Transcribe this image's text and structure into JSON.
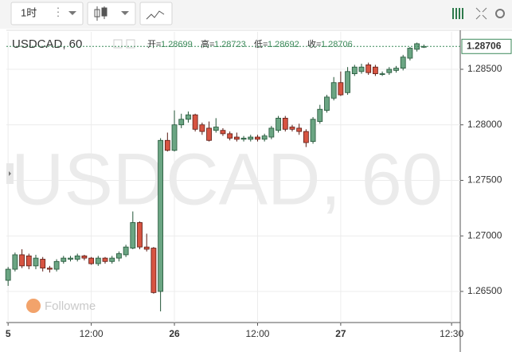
{
  "toolbar": {
    "interval": "1时"
  },
  "chart_data": {
    "type": "candlestick",
    "title": "USDCAD, 60",
    "ohlc_labels": [
      "开=",
      "高=",
      "低=",
      "收="
    ],
    "watermark_logo": "Followme",
    "up_color": "#6ba583",
    "down_color": "#d75442",
    "x": [
      0,
      1,
      2,
      3,
      4,
      5,
      6,
      7,
      8,
      9,
      10,
      11,
      12,
      13,
      14,
      15,
      16,
      17,
      18,
      19,
      20,
      21,
      22,
      23,
      24,
      25,
      26,
      27,
      28,
      29,
      30,
      31,
      32,
      33,
      34,
      35,
      36,
      37,
      38,
      39,
      40,
      41,
      42,
      43,
      44,
      45,
      46,
      47,
      48,
      49,
      50,
      51,
      52,
      53,
      54,
      55,
      56,
      57,
      58,
      59,
      60
    ],
    "open": [
      1.266,
      1.267,
      1.2683,
      1.2682,
      1.2673,
      1.2679,
      1.2671,
      1.267,
      1.2677,
      1.2679,
      1.2679,
      1.2682,
      1.268,
      1.2675,
      1.268,
      1.2677,
      1.268,
      1.2683,
      1.2689,
      1.2712,
      1.269,
      1.2689,
      1.265,
      1.2786,
      1.2777,
      1.28,
      1.2805,
      1.2809,
      1.28,
      1.2797,
      1.2795,
      1.2795,
      1.2792,
      1.2789,
      1.2787,
      1.2787,
      1.2789,
      1.2787,
      1.2789,
      1.2795,
      1.2806,
      1.2798,
      1.2797,
      1.2794,
      1.2785,
      1.2803,
      1.2813,
      1.2824,
      1.2838,
      1.2829,
      1.2846,
      1.2848,
      1.2854,
      1.2852,
      1.2846,
      1.2847,
      1.2849,
      1.2851,
      1.286,
      1.2868,
      1.28699
    ],
    "high": [
      1.2672,
      1.2685,
      1.2688,
      1.2684,
      1.2683,
      1.2681,
      1.2673,
      1.2679,
      1.2682,
      1.2682,
      1.2684,
      1.2683,
      1.2681,
      1.2682,
      1.2681,
      1.2682,
      1.2686,
      1.2692,
      1.2722,
      1.2713,
      1.2702,
      1.269,
      1.2788,
      1.2793,
      1.2813,
      1.281,
      1.2812,
      1.281,
      1.2802,
      1.2803,
      1.2806,
      1.2797,
      1.2794,
      1.2793,
      1.279,
      1.2791,
      1.2791,
      1.2792,
      1.2799,
      1.2808,
      1.2808,
      1.28,
      1.2801,
      1.2796,
      1.2807,
      1.2818,
      1.2827,
      1.2843,
      1.2848,
      1.2852,
      1.2854,
      1.2855,
      1.2856,
      1.2854,
      1.2848,
      1.2852,
      1.2853,
      1.2863,
      1.287,
      1.2874,
      1.28723
    ],
    "low": [
      1.2655,
      1.2668,
      1.2671,
      1.267,
      1.267,
      1.2668,
      1.2667,
      1.2668,
      1.2675,
      1.2677,
      1.2677,
      1.2678,
      1.2674,
      1.2673,
      1.2675,
      1.2675,
      1.2677,
      1.2681,
      1.2688,
      1.2688,
      1.2686,
      1.2648,
      1.2632,
      1.2776,
      1.2776,
      1.2797,
      1.2802,
      1.2794,
      1.2791,
      1.2785,
      1.2793,
      1.279,
      1.2786,
      1.2785,
      1.2785,
      1.2785,
      1.2785,
      1.2785,
      1.2787,
      1.2793,
      1.2794,
      1.2794,
      1.2791,
      1.278,
      1.2783,
      1.2801,
      1.2811,
      1.2822,
      1.2826,
      1.2827,
      1.2844,
      1.2846,
      1.2845,
      1.2844,
      1.2844,
      1.2845,
      1.2847,
      1.2849,
      1.2858,
      1.2866,
      1.28692
    ],
    "close": [
      1.267,
      1.2683,
      1.2673,
      1.2673,
      1.268,
      1.2671,
      1.267,
      1.2677,
      1.268,
      1.268,
      1.2682,
      1.268,
      1.2675,
      1.268,
      1.2677,
      1.268,
      1.2684,
      1.269,
      1.2712,
      1.269,
      1.2688,
      1.2649,
      1.2786,
      1.2777,
      1.28,
      1.2805,
      1.2809,
      1.2796,
      1.2794,
      1.2786,
      1.2798,
      1.2792,
      1.2788,
      1.2787,
      1.2788,
      1.2789,
      1.2787,
      1.279,
      1.2797,
      1.2806,
      1.2796,
      1.2796,
      1.2794,
      1.2784,
      1.2805,
      1.2814,
      1.2825,
      1.2838,
      1.2827,
      1.2848,
      1.2852,
      1.2852,
      1.2847,
      1.2846,
      1.2846,
      1.285,
      1.2851,
      1.2861,
      1.2869,
      1.2873,
      1.28706
    ],
    "xlim": [
      -0.25,
      65.25
    ],
    "xticks": [
      {
        "value": 0,
        "label": "5"
      },
      {
        "value": 12,
        "label": "12:00"
      },
      {
        "value": 24,
        "label": "26"
      },
      {
        "value": 36,
        "label": "12:00"
      },
      {
        "value": 48,
        "label": "27"
      },
      {
        "value": 64,
        "label": "12:30"
      }
    ],
    "ylim": [
      1.2622,
      1.28837
    ],
    "yticks": [
      {
        "value": 1.265,
        "label": "1.26500"
      },
      {
        "value": 1.27,
        "label": "1.27000"
      },
      {
        "value": 1.275,
        "label": "1.27500"
      },
      {
        "value": 1.28,
        "label": "1.28000"
      },
      {
        "value": 1.285,
        "label": "1.28500"
      }
    ],
    "grid": true
  }
}
